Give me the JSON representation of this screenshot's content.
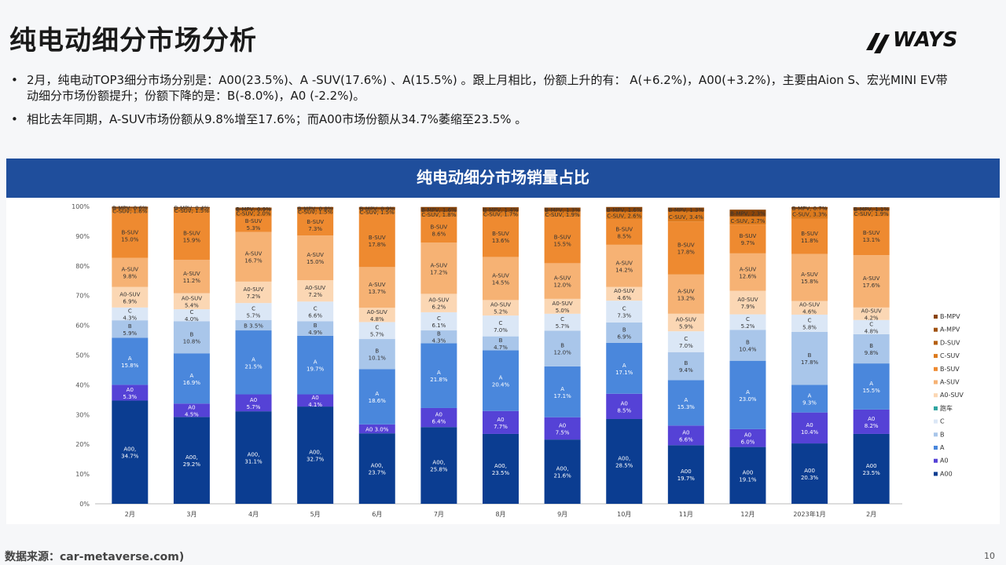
{
  "title": "纯电动细分市场分析",
  "logo_text": "WAYS",
  "bullets": [
    "2月，纯电动TOP3细分市场分别是：A00(23.5%)、A -SUV(17.6%) 、A(15.5%) 。跟上月相比，份额上升的有： A(+6.2%)，A00(+3.2%)，主要由Aion S、宏光MINI EV带动细分市场份额提升；份额下降的是：B(-8.0%)，A0 (-2.2%)。",
    "相比去年同期，A-SUV市场份额从9.8%增至17.6%；而A00市场份额从34.7%萎缩至23.5% 。"
  ],
  "footer": "数据来源：car-metaverse.com)",
  "page_number": "10",
  "chart_data": {
    "type": "bar",
    "stacked": true,
    "title": "纯电动细分市场销量占比",
    "categories": [
      "2月",
      "3月",
      "4月",
      "5月",
      "6月",
      "7月",
      "8月",
      "9月",
      "10月",
      "11月",
      "12月",
      "2023年1月",
      "2月"
    ],
    "y_ticks": [
      "0%",
      "10%",
      "20%",
      "30%",
      "40%",
      "50%",
      "60%",
      "70%",
      "80%",
      "90%",
      "100%"
    ],
    "ylim": [
      0,
      100
    ],
    "legend_position": "right",
    "series": [
      {
        "name": "A00",
        "color": "#0b3d91",
        "values": [
          34.7,
          29.2,
          31.1,
          32.7,
          23.7,
          25.8,
          23.5,
          21.6,
          28.5,
          19.7,
          19.1,
          20.3,
          23.5
        ],
        "labels": [
          "A00,\n34.7%",
          "A00,\n29.2%",
          "A00,\n31.1%",
          "A00,\n32.7%",
          "A00,\n23.7%",
          "A00,\n25.8%",
          "A00,\n23.5%",
          "A00,\n21.6%",
          "A00,\n28.5%",
          "A00\n19.7%",
          "A00\n19.1%",
          "A00\n20.3%",
          "A00\n23.5%"
        ]
      },
      {
        "name": "A0",
        "color": "#5542d6",
        "values": [
          5.3,
          4.5,
          5.7,
          4.1,
          3.0,
          6.4,
          7.7,
          7.5,
          8.5,
          6.6,
          6.0,
          10.4,
          8.2
        ],
        "labels": [
          "A0\n5.3%",
          "A0\n4.5%",
          "A0\n5.7%",
          "A0\n4.1%",
          "A0\n3.0%",
          "A0\n6.4%",
          "A0\n7.7%",
          "A0\n7.5%",
          "A0\n8.5%",
          "A0\n6.6%",
          "A0\n6.0%",
          "A0\n10.4%",
          "A0\n8.2%"
        ]
      },
      {
        "name": "A",
        "color": "#4a87dc",
        "values": [
          15.8,
          16.9,
          21.5,
          19.7,
          18.6,
          21.8,
          20.4,
          17.1,
          17.1,
          15.3,
          23.0,
          9.3,
          15.5
        ],
        "labels": [
          "A\n15.8%",
          "A\n16.9%",
          "A\n21.5%",
          "A\n19.7%",
          "A\n18.6%",
          "A\n21.8%",
          "A\n20.4%",
          "A\n17.1%",
          "A\n17.1%",
          "A\n15.3%",
          "A\n23.0%",
          "A\n9.3%",
          "A\n15.5%"
        ]
      },
      {
        "name": "B",
        "color": "#a9c6ea",
        "values": [
          5.9,
          10.8,
          3.5,
          4.9,
          10.1,
          4.3,
          4.7,
          12.0,
          6.9,
          9.4,
          10.4,
          17.8,
          9.8
        ],
        "labels": [
          "B\n5.9%",
          "B\n10.8%",
          "B\n3.5%",
          "B\n4.9%",
          "B\n10.1%",
          "B\n4.3%",
          "B\n4.7%",
          "B\n12.0%",
          "B\n6.9%",
          "B\n9.4%",
          "B\n10.4%",
          "B\n17.8%",
          "B\n9.8%"
        ]
      },
      {
        "name": "C",
        "color": "#dbe7f6",
        "values": [
          4.3,
          4.0,
          5.7,
          6.6,
          5.7,
          6.1,
          7.0,
          5.7,
          7.3,
          7.0,
          5.2,
          5.8,
          4.8
        ],
        "labels": [
          "C\n4.3%",
          "C\n4.0%",
          "C\n5.7%",
          "C\n6.6%",
          "C\n5.7%",
          "C\n6.1%",
          "C\n7.0%",
          "C\n5.7%",
          "C\n7.3%",
          "C\n7.0%",
          "C\n5.2%",
          "C\n5.8%",
          "C\n4.8%"
        ]
      },
      {
        "name": "跑车",
        "color": "#2fa4a0",
        "values": [
          0,
          0,
          0,
          0,
          0,
          0,
          0,
          0,
          0,
          0,
          0,
          0,
          0
        ],
        "labels": []
      },
      {
        "name": "A0-SUV",
        "color": "#fbd7b4",
        "values": [
          6.9,
          5.4,
          7.2,
          7.2,
          4.8,
          6.2,
          5.2,
          5.0,
          4.6,
          5.9,
          7.9,
          4.6,
          4.2
        ],
        "labels": [
          "A0-SUV\n6.9%",
          "A0-SUV\n5.4%",
          "A0-SUV\n7.2%",
          "A0-SUV\n7.2%",
          "A0-SUV\n4.8%",
          "A0-SUV\n6.2%",
          "A0-SUV\n5.2%",
          "A0-SUV\n5.0%",
          "A0-SUV\n4.6%",
          "A0-SUV\n5.9%",
          "A0-SUV\n7.9%",
          "A0-SUV\n4.6%",
          "A0-SUV\n4.2%"
        ]
      },
      {
        "name": "A-SUV",
        "color": "#f6b274",
        "values": [
          9.8,
          11.2,
          16.7,
          15.0,
          13.7,
          17.2,
          14.5,
          12.0,
          14.2,
          13.2,
          12.6,
          15.8,
          17.6
        ],
        "labels": [
          "A-SUV\n9.8%",
          "A-SUV\n11.2%",
          "A-SUV\n16.7%",
          "A-SUV\n15.0%",
          "A-SUV\n13.7%",
          "A-SUV\n17.2%",
          "A-SUV\n14.5%",
          "A-SUV\n12.0%",
          "A-SUV\n14.2%",
          "A-SUV\n13.2%",
          "A-SUV\n12.6%",
          "A-SUV\n15.8%",
          "A-SUV\n17.6%"
        ]
      },
      {
        "name": "B-SUV",
        "color": "#ee8a30",
        "values": [
          15.0,
          15.9,
          5.3,
          7.3,
          17.8,
          8.6,
          13.6,
          15.5,
          8.5,
          17.8,
          9.7,
          11.8,
          13.1
        ],
        "labels": [
          "B-SUV\n15.0%",
          "B-SUV\n15.9%",
          "B-SUV\n5.3%",
          "B-SUV\n7.3%",
          "B-SUV\n17.8%",
          "B-SUV\n8.6%",
          "B-SUV\n13.6%",
          "B-SUV\n15.5%",
          "B-SUV\n8.5%",
          "B-SUV\n17.8%",
          "B-SUV\n9.7%",
          "B-SUV\n11.8%",
          "B-SUV\n13.1%"
        ]
      },
      {
        "name": "C-SUV",
        "color": "#dc7a1d",
        "values": [
          1.6,
          1.5,
          2.0,
          1.5,
          1.5,
          1.8,
          1.7,
          1.9,
          2.6,
          3.4,
          2.7,
          3.3,
          1.9
        ],
        "labels": [
          "C-SUV, 1.6%",
          "C-SUV, 1.5%",
          "C-SUV, 2.0%",
          "C-SUV, 1.5%",
          "C-SUV, 1.5%",
          "C-SUV, 1.8%",
          "C-SUV, 1.7%",
          "C-SUV, 1.9%",
          "C-SUV, 2.6%",
          "C-SUV, 3.4%",
          "C-SUV, 2.7%",
          "C-SUV, 3.3%",
          "C-SUV, 1.9%"
        ]
      },
      {
        "name": "D-SUV",
        "color": "#b45f10",
        "values": [
          0,
          0,
          0,
          0,
          0,
          0,
          0,
          0,
          0,
          0,
          0,
          0,
          0
        ],
        "labels": []
      },
      {
        "name": "A-MPV",
        "color": "#a0520e",
        "values": [
          0,
          0,
          0,
          0,
          0,
          0,
          0,
          0,
          0,
          0,
          0,
          0,
          0
        ],
        "labels": []
      },
      {
        "name": "B-MPV",
        "color": "#8a4409",
        "values": [
          0.6,
          0.4,
          0.9,
          0.8,
          0.9,
          1.6,
          1.4,
          1.3,
          1.6,
          1.3,
          2.3,
          0.7,
          1.1
        ],
        "labels": [
          "B-MPV, 0.6%",
          "B-MPV, 0.4%",
          "B-MPV, 0.9%",
          "B-MPV, 0.8%",
          "B-MPV, 0.9%",
          "B-MPV, 1.6%",
          "B-MPV, 1.4%",
          "B-MPV, 1.3%",
          "B-MPV, 1.6%",
          "B-MPV, 1.3%",
          "B-MPV, 2.3%",
          "B-MPV, 0.7%",
          "B-MPV, 1.1%"
        ]
      }
    ]
  }
}
